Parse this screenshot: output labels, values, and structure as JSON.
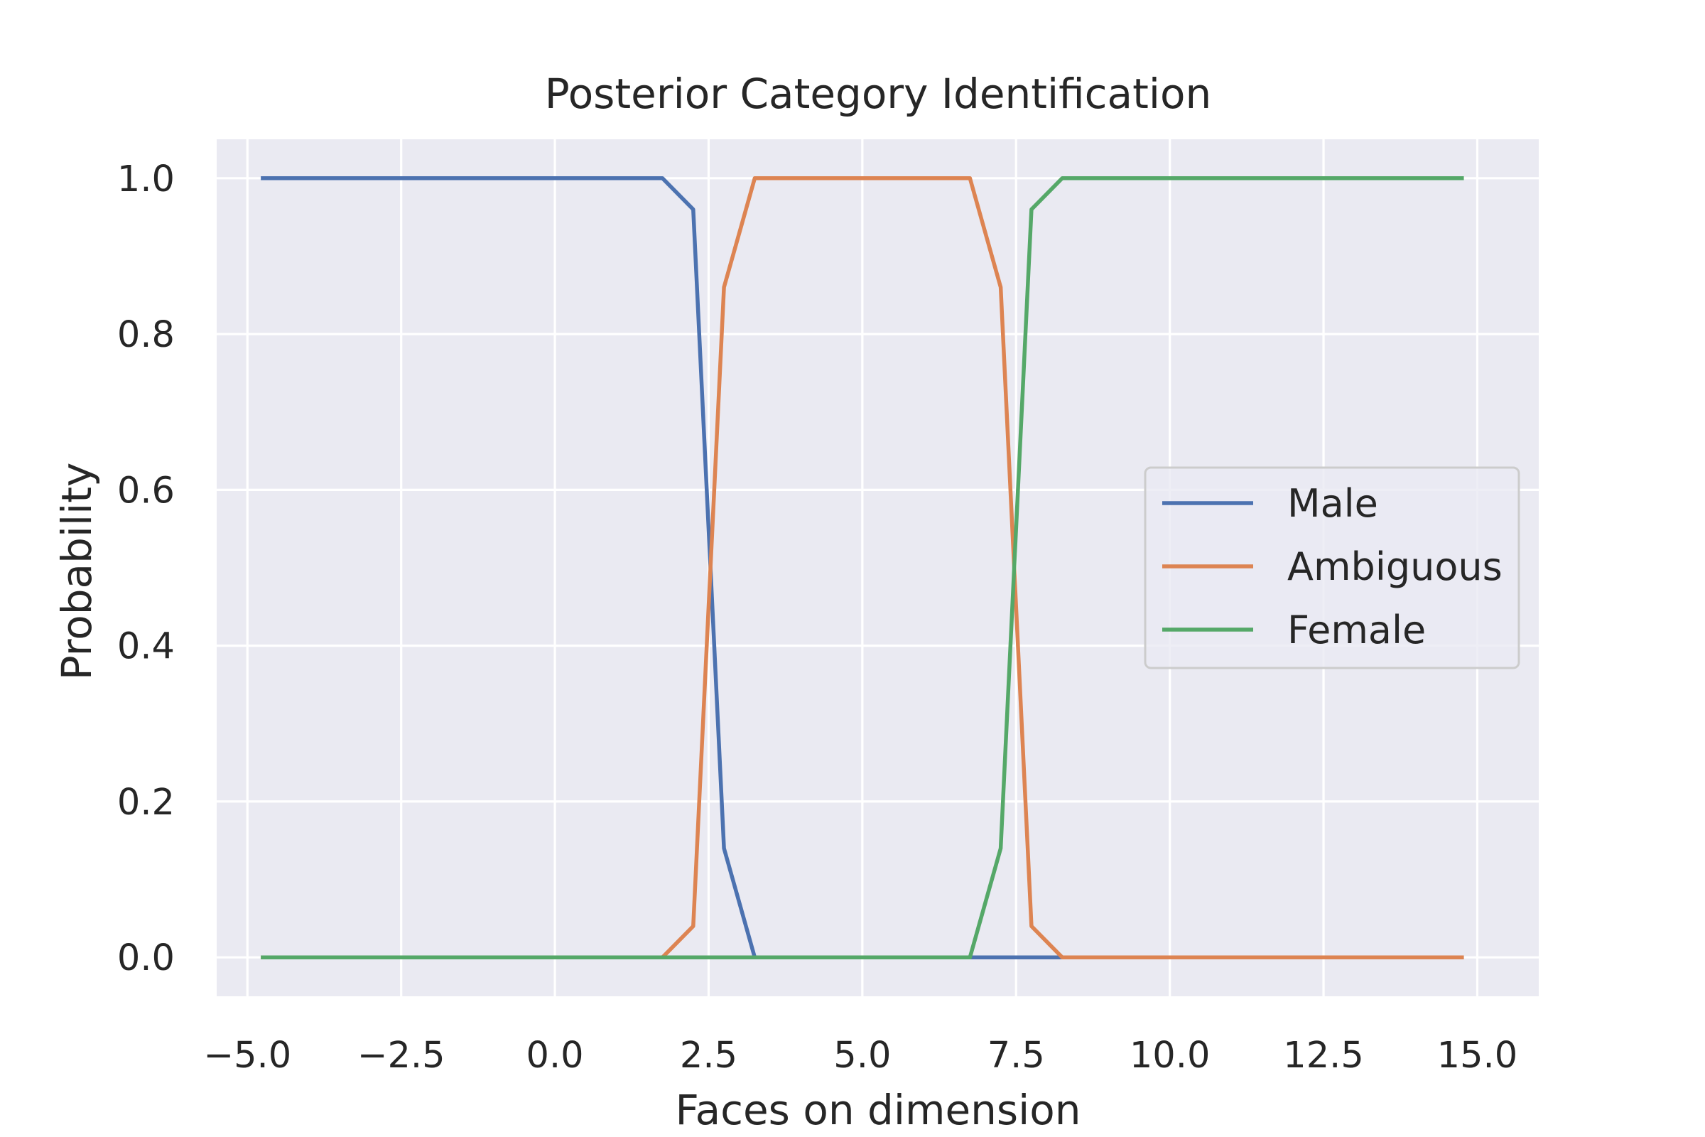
{
  "chart_data": {
    "type": "line",
    "title": "Posterior Category Identification",
    "xlabel": "Faces on dimension",
    "ylabel": "Probability",
    "xlim": [
      -5.5,
      16.0
    ],
    "ylim": [
      -0.05,
      1.05
    ],
    "x_ticks": [
      -5.0,
      -2.5,
      0.0,
      2.5,
      5.0,
      7.5,
      10.0,
      12.5,
      15.0
    ],
    "x_tick_labels": [
      "−5.0",
      "−2.5",
      "0.0",
      "2.5",
      "5.0",
      "7.5",
      "10.0",
      "12.5",
      "15.0"
    ],
    "y_ticks": [
      0.0,
      0.2,
      0.4,
      0.6,
      0.8,
      1.0
    ],
    "y_tick_labels": [
      "0.0",
      "0.2",
      "0.4",
      "0.6",
      "0.8",
      "1.0"
    ],
    "grid": true,
    "background_color": "#eaeaf2",
    "legend_position": "center-right",
    "x": [
      -4.75,
      1.75,
      2.25,
      2.75,
      3.25,
      3.75,
      6.25,
      6.75,
      7.25,
      7.75,
      8.25,
      14.75
    ],
    "series": [
      {
        "name": "Male",
        "color": "#4c72b0",
        "values": [
          1.0,
          1.0,
          0.96,
          0.14,
          0.0,
          0.0,
          0.0,
          0.0,
          0.0,
          0.0,
          0.0,
          0.0
        ]
      },
      {
        "name": "Ambiguous",
        "color": "#dd8452",
        "values": [
          0.0,
          0.0,
          0.04,
          0.86,
          1.0,
          1.0,
          1.0,
          1.0,
          0.86,
          0.04,
          0.0,
          0.0
        ]
      },
      {
        "name": "Female",
        "color": "#55a868",
        "values": [
          0.0,
          0.0,
          0.0,
          0.0,
          0.0,
          0.0,
          0.0,
          0.0,
          0.14,
          0.96,
          1.0,
          1.0
        ]
      }
    ]
  }
}
